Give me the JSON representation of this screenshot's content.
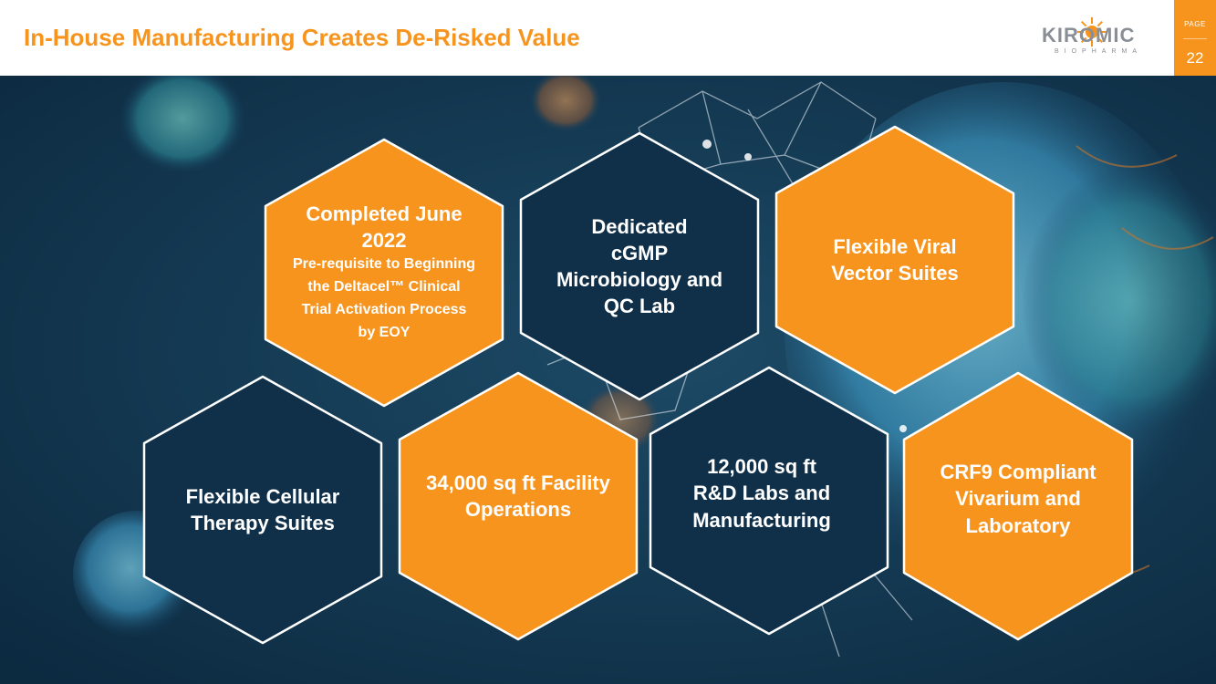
{
  "slide": {
    "title": "In-House Manufacturing Creates De-Risked Value",
    "logo": {
      "name": "KIROMIC",
      "tagline": "BIOPHARMA"
    },
    "page": {
      "label": "PAGE",
      "number": "22"
    }
  },
  "colors": {
    "accent": "#f7941d",
    "navy": "#10304a",
    "background": "#0f2f47"
  },
  "hexagons": [
    {
      "id": "completed",
      "heading_lines": [
        "Completed June",
        "2022"
      ],
      "detail_lines": [
        "Pre-requisite to Beginning",
        "the Deltacel™ Clinical",
        "Trial Activation Process",
        "by EOY"
      ]
    },
    {
      "id": "qc-lab",
      "lines": [
        "Dedicated",
        "cGMP",
        "Microbiology and",
        "QC Lab"
      ]
    },
    {
      "id": "viral-vector",
      "lines": [
        "Flexible Viral",
        "Vector Suites"
      ]
    },
    {
      "id": "cellular-therapy",
      "lines": [
        "Flexible Cellular",
        "Therapy Suites"
      ]
    },
    {
      "id": "facility",
      "lines": [
        "34,000 sq ft Facility",
        "Operations"
      ]
    },
    {
      "id": "rd-labs",
      "lines": [
        "12,000 sq ft",
        "R&D Labs and",
        "Manufacturing"
      ]
    },
    {
      "id": "vivarium",
      "lines": [
        "CRF9 Compliant",
        "Vivarium and",
        "Laboratory"
      ]
    }
  ]
}
